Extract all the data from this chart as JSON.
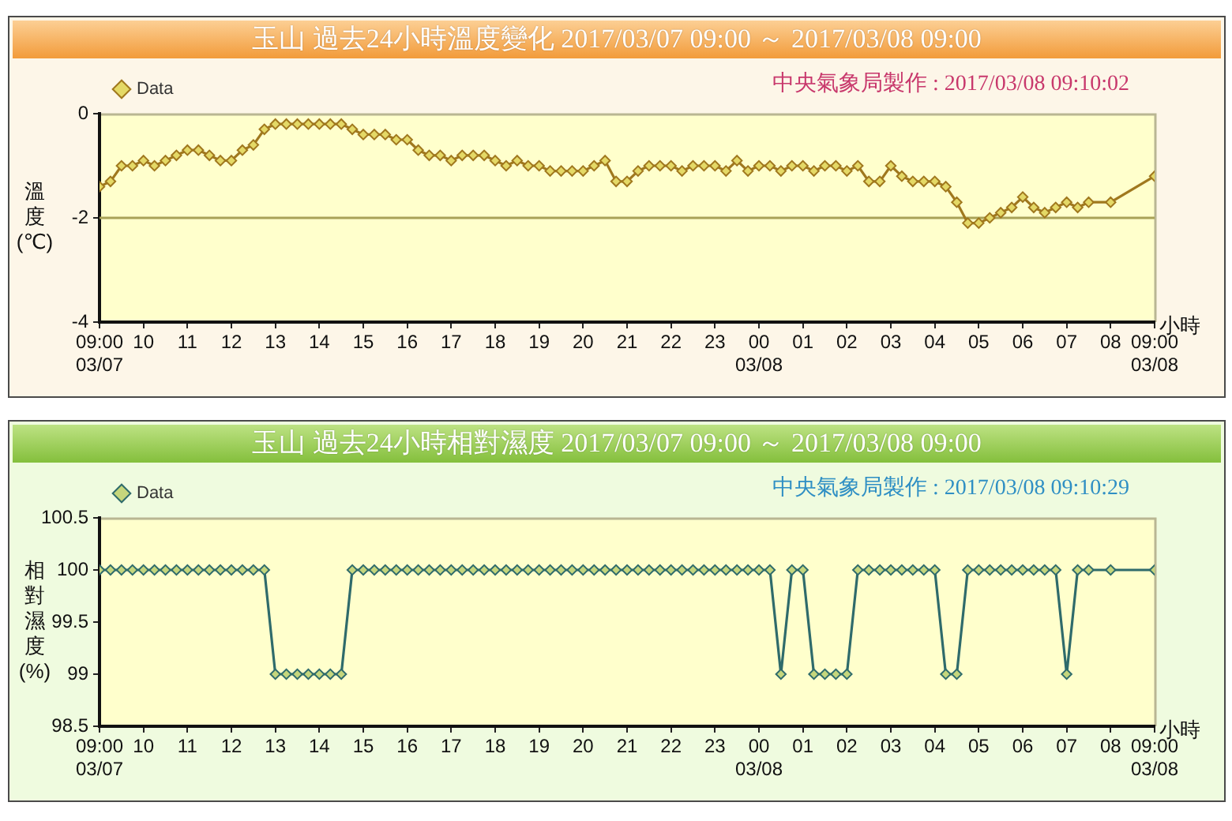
{
  "chart_data": [
    {
      "type": "line",
      "title": "玉山 過去24小時溫度變化 2017/03/07 09:00 ～ 2017/03/08 09:00",
      "annotations": [
        "中央氣象局製作 : 2017/03/08 09:10:02"
      ],
      "xlabel": "小時",
      "ylabel": "溫度(℃)",
      "x": [
        "2017-03-07T09:00",
        "2017-03-07T09:15",
        "2017-03-07T09:30",
        "2017-03-07T09:45",
        "2017-03-07T10:00",
        "2017-03-07T10:15",
        "2017-03-07T10:30",
        "2017-03-07T10:45",
        "2017-03-07T11:00",
        "2017-03-07T11:15",
        "2017-03-07T11:30",
        "2017-03-07T11:45",
        "2017-03-07T12:00",
        "2017-03-07T12:15",
        "2017-03-07T12:30",
        "2017-03-07T12:45",
        "2017-03-07T13:00",
        "2017-03-07T13:15",
        "2017-03-07T13:30",
        "2017-03-07T13:45",
        "2017-03-07T14:00",
        "2017-03-07T14:15",
        "2017-03-07T14:30",
        "2017-03-07T14:45",
        "2017-03-07T15:00",
        "2017-03-07T15:15",
        "2017-03-07T15:30",
        "2017-03-07T15:45",
        "2017-03-07T16:00",
        "2017-03-07T16:15",
        "2017-03-07T16:30",
        "2017-03-07T16:45",
        "2017-03-07T17:00",
        "2017-03-07T17:15",
        "2017-03-07T17:30",
        "2017-03-07T17:45",
        "2017-03-07T18:00",
        "2017-03-07T18:15",
        "2017-03-07T18:30",
        "2017-03-07T18:45",
        "2017-03-07T19:00",
        "2017-03-07T19:15",
        "2017-03-07T19:30",
        "2017-03-07T19:45",
        "2017-03-07T20:00",
        "2017-03-07T20:15",
        "2017-03-07T20:30",
        "2017-03-07T20:45",
        "2017-03-07T21:00",
        "2017-03-07T21:15",
        "2017-03-07T21:30",
        "2017-03-07T21:45",
        "2017-03-07T22:00",
        "2017-03-07T22:15",
        "2017-03-07T22:30",
        "2017-03-07T22:45",
        "2017-03-07T23:00",
        "2017-03-07T23:15",
        "2017-03-07T23:30",
        "2017-03-07T23:45",
        "2017-03-08T00:00",
        "2017-03-08T00:15",
        "2017-03-08T00:30",
        "2017-03-08T00:45",
        "2017-03-08T01:00",
        "2017-03-08T01:15",
        "2017-03-08T01:30",
        "2017-03-08T01:45",
        "2017-03-08T02:00",
        "2017-03-08T02:15",
        "2017-03-08T02:30",
        "2017-03-08T02:45",
        "2017-03-08T03:00",
        "2017-03-08T03:15",
        "2017-03-08T03:30",
        "2017-03-08T03:45",
        "2017-03-08T04:00",
        "2017-03-08T04:15",
        "2017-03-08T04:30",
        "2017-03-08T04:45",
        "2017-03-08T05:00",
        "2017-03-08T05:15",
        "2017-03-08T05:30",
        "2017-03-08T05:45",
        "2017-03-08T06:00",
        "2017-03-08T06:15",
        "2017-03-08T06:30",
        "2017-03-08T06:45",
        "2017-03-08T07:00",
        "2017-03-08T07:15",
        "2017-03-08T07:30",
        "2017-03-08T08:00",
        "2017-03-08T09:00"
      ],
      "series": [
        {
          "name": "Data",
          "color": "#a0781e",
          "values": [
            -1.4,
            -1.3,
            -1.0,
            -1.0,
            -0.9,
            -1.0,
            -0.9,
            -0.8,
            -0.7,
            -0.7,
            -0.8,
            -0.9,
            -0.9,
            -0.7,
            -0.6,
            -0.3,
            -0.2,
            -0.2,
            -0.2,
            -0.2,
            -0.2,
            -0.2,
            -0.2,
            -0.3,
            -0.4,
            -0.4,
            -0.4,
            -0.5,
            -0.5,
            -0.7,
            -0.8,
            -0.8,
            -0.9,
            -0.8,
            -0.8,
            -0.8,
            -0.9,
            -1.0,
            -0.9,
            -1.0,
            -1.0,
            -1.1,
            -1.1,
            -1.1,
            -1.1,
            -1.0,
            -0.9,
            -1.3,
            -1.3,
            -1.1,
            -1.0,
            -1.0,
            -1.0,
            -1.1,
            -1.0,
            -1.0,
            -1.0,
            -1.1,
            -0.9,
            -1.1,
            -1.0,
            -1.0,
            -1.1,
            -1.0,
            -1.0,
            -1.1,
            -1.0,
            -1.0,
            -1.1,
            -1.0,
            -1.3,
            -1.3,
            -1.0,
            -1.2,
            -1.3,
            -1.3,
            -1.3,
            -1.4,
            -1.7,
            -2.1,
            -2.1,
            -2.0,
            -1.9,
            -1.8,
            -1.6,
            -1.8,
            -1.9,
            -1.8,
            -1.7,
            -1.8,
            -1.7,
            -1.7,
            -1.2
          ]
        }
      ],
      "xlim": [
        "2017-03-07T09:00",
        "2017-03-08T09:00"
      ],
      "xticks": [
        {
          "value": "2017-03-07T09:00",
          "label": "09:00\n03/07"
        },
        {
          "value": "2017-03-07T10:00",
          "label": "10"
        },
        {
          "value": "2017-03-07T11:00",
          "label": "11"
        },
        {
          "value": "2017-03-07T12:00",
          "label": "12"
        },
        {
          "value": "2017-03-07T13:00",
          "label": "13"
        },
        {
          "value": "2017-03-07T14:00",
          "label": "14"
        },
        {
          "value": "2017-03-07T15:00",
          "label": "15"
        },
        {
          "value": "2017-03-07T16:00",
          "label": "16"
        },
        {
          "value": "2017-03-07T17:00",
          "label": "17"
        },
        {
          "value": "2017-03-07T18:00",
          "label": "18"
        },
        {
          "value": "2017-03-07T19:00",
          "label": "19"
        },
        {
          "value": "2017-03-07T20:00",
          "label": "20"
        },
        {
          "value": "2017-03-07T21:00",
          "label": "21"
        },
        {
          "value": "2017-03-07T22:00",
          "label": "22"
        },
        {
          "value": "2017-03-07T23:00",
          "label": "23"
        },
        {
          "value": "2017-03-08T00:00",
          "label": "00\n03/08"
        },
        {
          "value": "2017-03-08T01:00",
          "label": "01"
        },
        {
          "value": "2017-03-08T02:00",
          "label": "02"
        },
        {
          "value": "2017-03-08T03:00",
          "label": "03"
        },
        {
          "value": "2017-03-08T04:00",
          "label": "04"
        },
        {
          "value": "2017-03-08T05:00",
          "label": "05"
        },
        {
          "value": "2017-03-08T06:00",
          "label": "06"
        },
        {
          "value": "2017-03-08T07:00",
          "label": "07"
        },
        {
          "value": "2017-03-08T08:00",
          "label": "08"
        },
        {
          "value": "2017-03-08T09:00",
          "label": "09:00\n03/08"
        }
      ],
      "ylim": [
        -4,
        0
      ],
      "yticks": [
        -4,
        -2,
        0
      ],
      "ref_lines": [
        {
          "axis": "y",
          "value": -2,
          "color": "#a9a257"
        }
      ],
      "legend": "top left",
      "marker": "diamond",
      "line_style": "solid"
    },
    {
      "type": "line",
      "title": "玉山 過去24小時相對濕度 2017/03/07 09:00 ～ 2017/03/08 09:00",
      "annotations": [
        "中央氣象局製作 : 2017/03/08 09:10:29"
      ],
      "xlabel": "小時",
      "ylabel": "相對濕度(%)",
      "x": [
        "2017-03-07T09:00",
        "2017-03-07T09:15",
        "2017-03-07T09:30",
        "2017-03-07T09:45",
        "2017-03-07T10:00",
        "2017-03-07T10:15",
        "2017-03-07T10:30",
        "2017-03-07T10:45",
        "2017-03-07T11:00",
        "2017-03-07T11:15",
        "2017-03-07T11:30",
        "2017-03-07T11:45",
        "2017-03-07T12:00",
        "2017-03-07T12:15",
        "2017-03-07T12:30",
        "2017-03-07T12:45",
        "2017-03-07T13:00",
        "2017-03-07T13:15",
        "2017-03-07T13:30",
        "2017-03-07T13:45",
        "2017-03-07T14:00",
        "2017-03-07T14:15",
        "2017-03-07T14:30",
        "2017-03-07T14:45",
        "2017-03-07T15:00",
        "2017-03-07T15:15",
        "2017-03-07T15:30",
        "2017-03-07T15:45",
        "2017-03-07T16:00",
        "2017-03-07T16:15",
        "2017-03-07T16:30",
        "2017-03-07T16:45",
        "2017-03-07T17:00",
        "2017-03-07T17:15",
        "2017-03-07T17:30",
        "2017-03-07T17:45",
        "2017-03-07T18:00",
        "2017-03-07T18:15",
        "2017-03-07T18:30",
        "2017-03-07T18:45",
        "2017-03-07T19:00",
        "2017-03-07T19:15",
        "2017-03-07T19:30",
        "2017-03-07T19:45",
        "2017-03-07T20:00",
        "2017-03-07T20:15",
        "2017-03-07T20:30",
        "2017-03-07T20:45",
        "2017-03-07T21:00",
        "2017-03-07T21:15",
        "2017-03-07T21:30",
        "2017-03-07T21:45",
        "2017-03-07T22:00",
        "2017-03-07T22:15",
        "2017-03-07T22:30",
        "2017-03-07T22:45",
        "2017-03-07T23:00",
        "2017-03-07T23:15",
        "2017-03-07T23:30",
        "2017-03-07T23:45",
        "2017-03-08T00:00",
        "2017-03-08T00:15",
        "2017-03-08T00:30",
        "2017-03-08T00:45",
        "2017-03-08T01:00",
        "2017-03-08T01:15",
        "2017-03-08T01:30",
        "2017-03-08T01:45",
        "2017-03-08T02:00",
        "2017-03-08T02:15",
        "2017-03-08T02:30",
        "2017-03-08T02:45",
        "2017-03-08T03:00",
        "2017-03-08T03:15",
        "2017-03-08T03:30",
        "2017-03-08T03:45",
        "2017-03-08T04:00",
        "2017-03-08T04:15",
        "2017-03-08T04:30",
        "2017-03-08T04:45",
        "2017-03-08T05:00",
        "2017-03-08T05:15",
        "2017-03-08T05:30",
        "2017-03-08T05:45",
        "2017-03-08T06:00",
        "2017-03-08T06:15",
        "2017-03-08T06:30",
        "2017-03-08T06:45",
        "2017-03-08T07:00",
        "2017-03-08T07:15",
        "2017-03-08T07:30",
        "2017-03-08T08:00",
        "2017-03-08T09:00"
      ],
      "series": [
        {
          "name": "Data",
          "color": "#2f6b6b",
          "values": [
            100,
            100,
            100,
            100,
            100,
            100,
            100,
            100,
            100,
            100,
            100,
            100,
            100,
            100,
            100,
            100,
            99,
            99,
            99,
            99,
            99,
            99,
            99,
            100,
            100,
            100,
            100,
            100,
            100,
            100,
            100,
            100,
            100,
            100,
            100,
            100,
            100,
            100,
            100,
            100,
            100,
            100,
            100,
            100,
            100,
            100,
            100,
            100,
            100,
            100,
            100,
            100,
            100,
            100,
            100,
            100,
            100,
            100,
            100,
            100,
            100,
            100,
            99,
            100,
            100,
            99,
            99,
            99,
            99,
            100,
            100,
            100,
            100,
            100,
            100,
            100,
            100,
            99,
            99,
            100,
            100,
            100,
            100,
            100,
            100,
            100,
            100,
            100,
            99,
            100,
            100,
            100,
            100
          ]
        }
      ],
      "xlim": [
        "2017-03-07T09:00",
        "2017-03-08T09:00"
      ],
      "xticks": [
        {
          "value": "2017-03-07T09:00",
          "label": "09:00\n03/07"
        },
        {
          "value": "2017-03-07T10:00",
          "label": "10"
        },
        {
          "value": "2017-03-07T11:00",
          "label": "11"
        },
        {
          "value": "2017-03-07T12:00",
          "label": "12"
        },
        {
          "value": "2017-03-07T13:00",
          "label": "13"
        },
        {
          "value": "2017-03-07T14:00",
          "label": "14"
        },
        {
          "value": "2017-03-07T15:00",
          "label": "15"
        },
        {
          "value": "2017-03-07T16:00",
          "label": "16"
        },
        {
          "value": "2017-03-07T17:00",
          "label": "17"
        },
        {
          "value": "2017-03-07T18:00",
          "label": "18"
        },
        {
          "value": "2017-03-07T19:00",
          "label": "19"
        },
        {
          "value": "2017-03-07T20:00",
          "label": "20"
        },
        {
          "value": "2017-03-07T21:00",
          "label": "21"
        },
        {
          "value": "2017-03-07T22:00",
          "label": "22"
        },
        {
          "value": "2017-03-07T23:00",
          "label": "23"
        },
        {
          "value": "2017-03-08T00:00",
          "label": "00\n03/08"
        },
        {
          "value": "2017-03-08T01:00",
          "label": "01"
        },
        {
          "value": "2017-03-08T02:00",
          "label": "02"
        },
        {
          "value": "2017-03-08T03:00",
          "label": "03"
        },
        {
          "value": "2017-03-08T04:00",
          "label": "04"
        },
        {
          "value": "2017-03-08T05:00",
          "label": "05"
        },
        {
          "value": "2017-03-08T06:00",
          "label": "06"
        },
        {
          "value": "2017-03-08T07:00",
          "label": "07"
        },
        {
          "value": "2017-03-08T08:00",
          "label": "08"
        },
        {
          "value": "2017-03-08T09:00",
          "label": "09:00\n03/08"
        }
      ],
      "ylim": [
        98.5,
        100.5
      ],
      "yticks": [
        98.5,
        99,
        99.5,
        100,
        100.5
      ],
      "legend": "top left",
      "marker": "diamond",
      "line_style": "solid"
    }
  ]
}
